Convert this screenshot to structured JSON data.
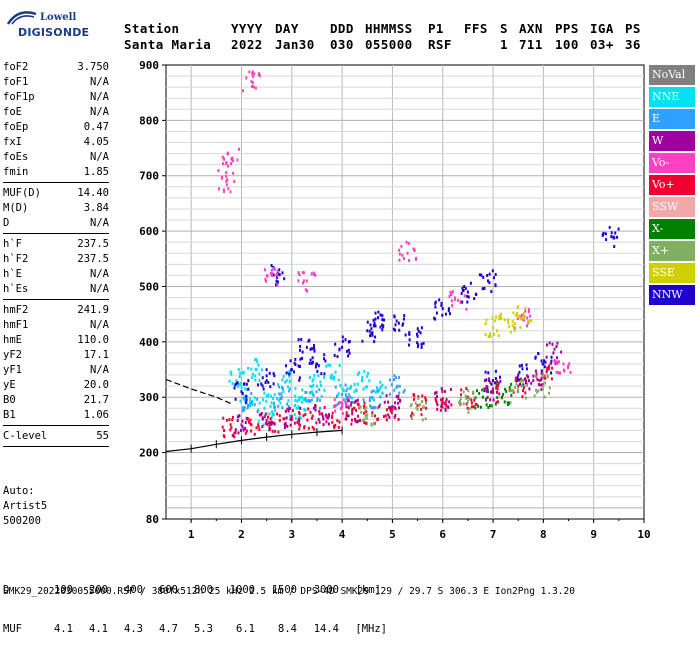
{
  "logo": {
    "top": "Lowell",
    "brand": "DIGISONDE"
  },
  "header": {
    "labels": [
      "Station",
      "YYYY",
      "DAY",
      "DDD",
      "HHMMSS",
      "P1",
      "FFS",
      "S",
      "AXN",
      "PPS",
      "IGA",
      "PS"
    ],
    "values": [
      "Santa Maria",
      "2022",
      "Jan30",
      "030",
      "055000",
      "RSF",
      "",
      "1",
      "711",
      "100",
      "03+",
      "36"
    ]
  },
  "params": {
    "group1": [
      {
        "label": "foF2",
        "value": "3.750"
      },
      {
        "label": "foF1",
        "value": "N/A"
      },
      {
        "label": "foF1p",
        "value": "N/A"
      },
      {
        "label": "foE",
        "value": "N/A"
      },
      {
        "label": "foEp",
        "value": "0.47"
      },
      {
        "label": "fxI",
        "value": "4.05"
      },
      {
        "label": "foEs",
        "value": "N/A"
      },
      {
        "label": "fmin",
        "value": "1.85"
      }
    ],
    "group2": [
      {
        "label": "MUF(D)",
        "value": "14.40"
      },
      {
        "label": "M(D)",
        "value": "3.84"
      },
      {
        "label": "D",
        "value": "N/A"
      }
    ],
    "group3": [
      {
        "label": "h`F",
        "value": "237.5"
      },
      {
        "label": "h`F2",
        "value": "237.5"
      },
      {
        "label": "h`E",
        "value": "N/A"
      },
      {
        "label": "h`Es",
        "value": "N/A"
      }
    ],
    "group4": [
      {
        "label": "hmF2",
        "value": "241.9"
      },
      {
        "label": "hmF1",
        "value": "N/A"
      },
      {
        "label": "hmE",
        "value": "110.0"
      },
      {
        "label": "yF2",
        "value": "17.1"
      },
      {
        "label": "yF1",
        "value": "N/A"
      },
      {
        "label": "yE",
        "value": "20.0"
      },
      {
        "label": "B0",
        "value": "21.7"
      },
      {
        "label": "B1",
        "value": "1.06"
      }
    ],
    "group5": [
      {
        "label": "C-level",
        "value": "55"
      }
    ]
  },
  "auto": {
    "line1": "Auto:",
    "line2": "Artist5",
    "line3": "500200"
  },
  "legend": [
    {
      "label": "NoVal",
      "color": "#808080"
    },
    {
      "label": "NNE",
      "color": "#00e0f0"
    },
    {
      "label": "E",
      "color": "#30a0ff"
    },
    {
      "label": "W",
      "color": "#a000a0"
    },
    {
      "label": "Vo-",
      "color": "#ff40c0"
    },
    {
      "label": "Vo+",
      "color": "#f00030"
    },
    {
      "label": "SSW",
      "color": "#f0a8a8"
    },
    {
      "label": "X-",
      "color": "#008000"
    },
    {
      "label": "X+",
      "color": "#80b060"
    },
    {
      "label": "SSE",
      "color": "#d0d000"
    },
    {
      "label": "NNW",
      "color": "#2000d0"
    }
  ],
  "bottom": {
    "d_label": "D",
    "d_values": [
      "100",
      "200",
      "400",
      "600",
      "800",
      "1000",
      "1500",
      "3000",
      "[km]"
    ],
    "muf_label": "MUF",
    "muf_values": [
      "4.1",
      "4.1",
      "4.3",
      "4.7",
      "5.3",
      "6.1",
      "8.4",
      "14.4",
      "[MHz]"
    ]
  },
  "footer": "SMK29_2022030055000.RSF / 380fx512h 25 kHz 2.5 km / DPS-4D SMK29 129 / 29.7 S 306.3 E Ion2Png 1.3.20",
  "chart_data": {
    "type": "scatter",
    "title": "",
    "xlabel": "",
    "ylabel": "",
    "xlim": [
      0.5,
      10
    ],
    "ylim": [
      80,
      900
    ],
    "x_ticks": [
      1,
      2,
      3,
      4,
      5,
      6,
      7,
      8,
      9,
      10
    ],
    "y_ticks": [
      80,
      200,
      300,
      400,
      500,
      600,
      700,
      800,
      900
    ],
    "grid": true,
    "legend_placement": "right",
    "series": [
      {
        "name": "NNE",
        "color": "#00e0f0",
        "points": [
          [
            1.9,
            330
          ],
          [
            2.1,
            300
          ],
          [
            2.3,
            350
          ],
          [
            2.6,
            290
          ],
          [
            2.9,
            330
          ],
          [
            3.2,
            300
          ],
          [
            3.5,
            320
          ],
          [
            3.8,
            340
          ],
          [
            4.1,
            300
          ],
          [
            4.4,
            330
          ],
          [
            4.7,
            310
          ],
          [
            2.5,
            270
          ],
          [
            3.1,
            280
          ]
        ]
      },
      {
        "name": "E",
        "color": "#30a0ff",
        "points": [
          [
            2.2,
            290
          ],
          [
            2.8,
            300
          ],
          [
            3.4,
            295
          ],
          [
            4.0,
            305
          ],
          [
            4.6,
            300
          ],
          [
            5.1,
            320
          ]
        ]
      },
      {
        "name": "NNW",
        "color": "#2000d0",
        "points": [
          [
            2.0,
            310
          ],
          [
            2.5,
            330
          ],
          [
            3.0,
            350
          ],
          [
            3.5,
            360
          ],
          [
            4.0,
            390
          ],
          [
            4.5,
            420
          ],
          [
            4.8,
            440
          ],
          [
            5.2,
            430
          ],
          [
            5.5,
            410
          ],
          [
            6.0,
            460
          ],
          [
            6.5,
            490
          ],
          [
            6.9,
            510
          ],
          [
            7.0,
            330
          ],
          [
            7.5,
            340
          ],
          [
            8.0,
            360
          ],
          [
            9.35,
            590
          ],
          [
            2.7,
            520
          ],
          [
            3.3,
            390
          ]
        ]
      },
      {
        "name": "Vo+",
        "color": "#f00030",
        "points": [
          [
            1.8,
            245
          ],
          [
            2.2,
            250
          ],
          [
            2.6,
            255
          ],
          [
            3.0,
            260
          ],
          [
            3.4,
            262
          ],
          [
            3.8,
            265
          ],
          [
            4.2,
            270
          ],
          [
            4.6,
            272
          ],
          [
            5.0,
            278
          ],
          [
            5.5,
            285
          ],
          [
            6.0,
            292
          ],
          [
            6.5,
            300
          ],
          [
            7.0,
            310
          ],
          [
            7.5,
            320
          ],
          [
            8.0,
            340
          ]
        ]
      },
      {
        "name": "W",
        "color": "#a000a0",
        "points": [
          [
            2.0,
            250
          ],
          [
            2.5,
            258
          ],
          [
            3.0,
            265
          ],
          [
            3.6,
            270
          ],
          [
            4.2,
            275
          ],
          [
            5.0,
            283
          ],
          [
            6.0,
            297
          ],
          [
            7.0,
            315
          ],
          [
            7.8,
            330
          ],
          [
            8.2,
            380
          ]
        ]
      },
      {
        "name": "Vo-",
        "color": "#ff40c0",
        "points": [
          [
            1.7,
            690
          ],
          [
            1.8,
            730
          ],
          [
            2.2,
            870
          ],
          [
            2.6,
            520
          ],
          [
            3.3,
            510
          ],
          [
            4.0,
            290
          ],
          [
            5.3,
            560
          ],
          [
            6.3,
            475
          ],
          [
            7.6,
            440
          ],
          [
            8.4,
            360
          ]
        ]
      },
      {
        "name": "X+",
        "color": "#80b060",
        "points": [
          [
            4.5,
            268
          ],
          [
            5.5,
            278
          ],
          [
            6.5,
            292
          ],
          [
            7.5,
            310
          ],
          [
            8.0,
            320
          ]
        ]
      },
      {
        "name": "SSE",
        "color": "#d0d000",
        "points": [
          [
            7.0,
            425
          ],
          [
            7.3,
            435
          ],
          [
            7.6,
            445
          ]
        ]
      },
      {
        "name": "X-",
        "color": "#008000",
        "points": [
          [
            6.8,
            300
          ],
          [
            7.2,
            305
          ]
        ]
      }
    ],
    "trace_lower": [
      [
        0.5,
        202
      ],
      [
        1.0,
        207
      ],
      [
        1.5,
        215
      ],
      [
        2.0,
        222
      ],
      [
        2.5,
        228
      ],
      [
        3.0,
        233
      ],
      [
        3.5,
        237
      ],
      [
        4.0,
        240
      ]
    ],
    "trace_upper": [
      [
        0.5,
        332
      ],
      [
        1.0,
        315
      ],
      [
        1.5,
        300
      ],
      [
        1.8,
        288
      ]
    ]
  }
}
